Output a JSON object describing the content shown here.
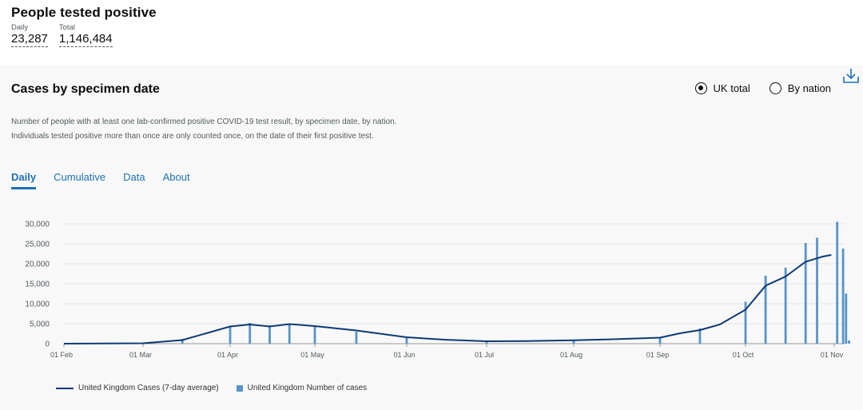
{
  "headline": {
    "title": "People tested positive",
    "daily_label": "Daily",
    "daily_value": "23,287",
    "total_label": "Total",
    "total_value": "1,146,484"
  },
  "card": {
    "title": "Cases by specimen date",
    "description": "Number of people with at least one lab-confirmed positive COVID-19 test result, by specimen date, by nation. Individuals tested positive more than once are only counted once, on the date of their first positive test.",
    "radios": [
      {
        "label": "UK total",
        "selected": true
      },
      {
        "label": "By nation",
        "selected": false
      }
    ],
    "download_icon": "download-icon",
    "tabs": [
      "Daily",
      "Cumulative",
      "Data",
      "About"
    ],
    "active_tab": "Daily"
  },
  "colors": {
    "bar": "#5694ca",
    "line": "#0b3a76",
    "accent": "#1d70b8"
  },
  "chart_data": {
    "type": "bar",
    "x_ticks": [
      "01 Feb",
      "01 Mar",
      "01 Apr",
      "01 May",
      "01 Jun",
      "01 Jul",
      "01 Aug",
      "01 Sep",
      "01 Oct",
      "01 Nov"
    ],
    "y_ticks": [
      "0",
      "5,000",
      "10,000",
      "15,000",
      "20,000",
      "25,000",
      "30,000"
    ],
    "ylim": [
      0,
      32000
    ],
    "series": [
      {
        "name": "United Kingdom Cases (7-day average)",
        "kind": "line",
        "points": [
          [
            "01 Feb",
            0
          ],
          [
            "01 Mar",
            100
          ],
          [
            "15 Mar",
            900
          ],
          [
            "01 Apr",
            4300
          ],
          [
            "08 Apr",
            4800
          ],
          [
            "15 Apr",
            4300
          ],
          [
            "22 Apr",
            4900
          ],
          [
            "01 May",
            4400
          ],
          [
            "15 May",
            3300
          ],
          [
            "01 Jun",
            1600
          ],
          [
            "15 Jun",
            1000
          ],
          [
            "01 Jul",
            600
          ],
          [
            "15 Jul",
            650
          ],
          [
            "01 Aug",
            850
          ],
          [
            "15 Aug",
            1100
          ],
          [
            "01 Sep",
            1500
          ],
          [
            "08 Sep",
            2600
          ],
          [
            "15 Sep",
            3400
          ],
          [
            "22 Sep",
            4800
          ],
          [
            "01 Oct",
            8500
          ],
          [
            "08 Oct",
            14500
          ],
          [
            "15 Oct",
            16800
          ],
          [
            "22 Oct",
            20500
          ],
          [
            "28 Oct",
            21800
          ],
          [
            "31 Oct",
            22200
          ]
        ]
      },
      {
        "name": "United Kingdom Number of cases",
        "kind": "bar",
        "points": [
          [
            "01 Mar",
            100
          ],
          [
            "15 Mar",
            1200
          ],
          [
            "01 Apr",
            4500
          ],
          [
            "08 Apr",
            5200
          ],
          [
            "15 Apr",
            4600
          ],
          [
            "22 Apr",
            5100
          ],
          [
            "01 May",
            4200
          ],
          [
            "15 May",
            3000
          ],
          [
            "01 Jun",
            1500
          ],
          [
            "01 Jul",
            600
          ],
          [
            "01 Aug",
            900
          ],
          [
            "01 Sep",
            1600
          ],
          [
            "15 Sep",
            3800
          ],
          [
            "01 Oct",
            10500
          ],
          [
            "08 Oct",
            17000
          ],
          [
            "15 Oct",
            19000
          ],
          [
            "22 Oct",
            25200
          ],
          [
            "26 Oct",
            26500
          ],
          [
            "02 Nov",
            30500
          ],
          [
            "04 Nov",
            23800
          ],
          [
            "05 Nov",
            12500
          ],
          [
            "06 Nov",
            800
          ]
        ]
      }
    ],
    "legend": "bottom-left"
  }
}
